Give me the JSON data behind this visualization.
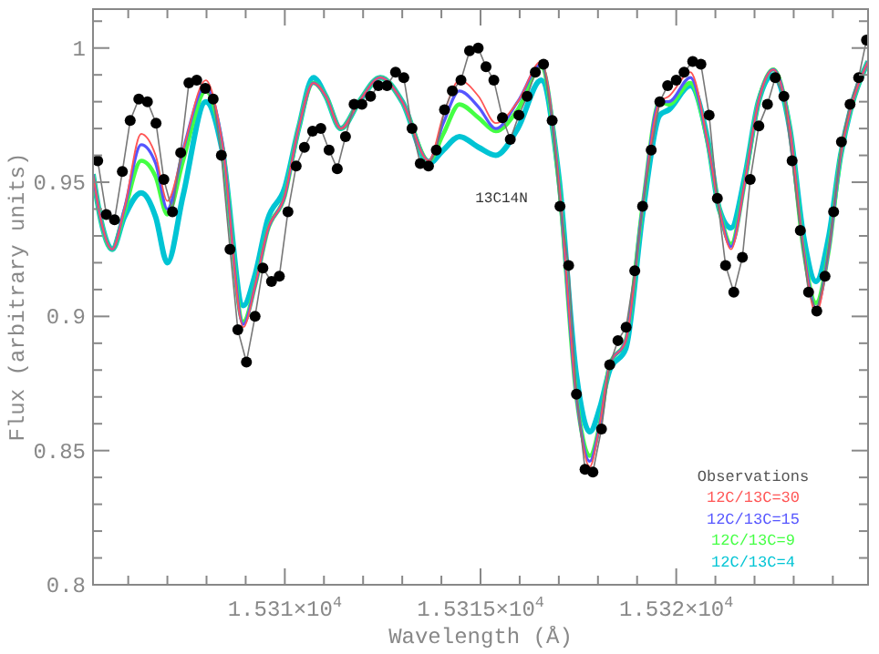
{
  "chart_data": {
    "type": "line",
    "xlabel": "Wavelength (Å)",
    "ylabel": "Flux (arbitrary units)",
    "xlim": [
      15305.1,
      15324.9
    ],
    "ylim": [
      0.8,
      1.0145
    ],
    "xticks": [
      {
        "value": 15306,
        "label": null
      },
      {
        "value": 15307,
        "label": null
      },
      {
        "value": 15308,
        "label": null
      },
      {
        "value": 15309,
        "label": null
      },
      {
        "value": 15310,
        "label": "1.531×10$^{4}$"
      },
      {
        "value": 15311,
        "label": null
      },
      {
        "value": 15312,
        "label": null
      },
      {
        "value": 15313,
        "label": null
      },
      {
        "value": 15314,
        "label": null
      },
      {
        "value": 15315,
        "label": "1.5315×10$^{4}$"
      },
      {
        "value": 15316,
        "label": null
      },
      {
        "value": 15317,
        "label": null
      },
      {
        "value": 15318,
        "label": null
      },
      {
        "value": 15319,
        "label": null
      },
      {
        "value": 15320,
        "label": "1.532×10$^{4}$"
      },
      {
        "value": 15321,
        "label": null
      },
      {
        "value": 15322,
        "label": null
      },
      {
        "value": 15323,
        "label": null
      },
      {
        "value": 15324,
        "label": null
      }
    ],
    "yticks": [
      0.8,
      {
        "value": 0.81,
        "label": null
      },
      {
        "value": 0.82,
        "label": null
      },
      {
        "value": 0.83,
        "label": null
      },
      {
        "value": 0.84,
        "label": null
      },
      0.85,
      {
        "value": 0.86,
        "label": null
      },
      {
        "value": 0.87,
        "label": null
      },
      {
        "value": 0.88,
        "label": null
      },
      {
        "value": 0.89,
        "label": null
      },
      0.9,
      {
        "value": 0.91,
        "label": null
      },
      {
        "value": 0.92,
        "label": null
      },
      {
        "value": 0.93,
        "label": null
      },
      {
        "value": 0.94,
        "label": null
      },
      0.95,
      {
        "value": 0.96,
        "label": null
      },
      {
        "value": 0.97,
        "label": null
      },
      {
        "value": 0.98,
        "label": null
      },
      {
        "value": 0.99,
        "label": null
      },
      1,
      {
        "value": 1.01,
        "label": null
      }
    ],
    "grid": false,
    "legend": "bottom right",
    "line_style": "solid",
    "annotations": [
      "13C14N"
    ],
    "series": [
      {
        "name": "12C/13C=4",
        "color": "#00c4d4",
        "x": [
          15305.1,
          15305.3,
          15305.59,
          15305.9,
          15306.33,
          15306.7,
          15307.0,
          15307.4,
          15307.98,
          15308.4,
          15308.94,
          15309.25,
          15309.56,
          15310.0,
          15310.35,
          15310.73,
          15311.05,
          15311.43,
          15311.9,
          15312.44,
          15313.0,
          15313.68,
          15314.05,
          15314.46,
          15314.95,
          15315.39,
          15315.95,
          15316.55,
          15317.0,
          15317.45,
          15317.79,
          15318.05,
          15318.3,
          15318.71,
          15319.14,
          15319.58,
          15319.81,
          15320.36,
          15320.8,
          15321.1,
          15321.4,
          15321.75,
          15322.1,
          15322.48,
          15322.9,
          15323.25,
          15323.57,
          15323.9,
          15324.2,
          15324.47,
          15324.9
        ],
        "values": [
          0.953,
          0.936,
          0.925,
          0.937,
          0.946,
          0.937,
          0.92,
          0.945,
          0.98,
          0.962,
          0.904,
          0.916,
          0.936,
          0.948,
          0.97,
          0.989,
          0.982,
          0.97,
          0.98,
          0.989,
          0.98,
          0.957,
          0.962,
          0.967,
          0.963,
          0.96,
          0.97,
          0.988,
          0.952,
          0.878,
          0.857,
          0.866,
          0.88,
          0.888,
          0.938,
          0.975,
          0.977,
          0.986,
          0.966,
          0.94,
          0.933,
          0.952,
          0.98,
          0.99,
          0.97,
          0.93,
          0.913,
          0.93,
          0.96,
          0.978,
          0.995
        ]
      },
      {
        "name": "12C/13C=9",
        "color": "#44ff44",
        "x": [
          15305.1,
          15305.3,
          15305.59,
          15305.9,
          15306.33,
          15306.7,
          15307.0,
          15307.4,
          15307.98,
          15308.4,
          15308.94,
          15309.25,
          15309.56,
          15310.0,
          15310.35,
          15310.73,
          15311.05,
          15311.43,
          15311.9,
          15312.44,
          15313.0,
          15313.68,
          15314.05,
          15314.46,
          15314.95,
          15315.39,
          15315.95,
          15316.55,
          15317.0,
          15317.45,
          15317.79,
          15318.05,
          15318.3,
          15318.71,
          15319.14,
          15319.58,
          15319.81,
          15320.36,
          15320.8,
          15321.1,
          15321.4,
          15321.75,
          15322.1,
          15322.48,
          15322.9,
          15323.25,
          15323.57,
          15323.9,
          15324.2,
          15324.47,
          15324.9
        ],
        "values": [
          0.953,
          0.936,
          0.925,
          0.939,
          0.958,
          0.952,
          0.938,
          0.958,
          0.984,
          0.964,
          0.898,
          0.912,
          0.932,
          0.945,
          0.97,
          0.987,
          0.982,
          0.97,
          0.98,
          0.989,
          0.98,
          0.958,
          0.968,
          0.979,
          0.974,
          0.969,
          0.977,
          0.993,
          0.95,
          0.87,
          0.848,
          0.86,
          0.882,
          0.891,
          0.941,
          0.98,
          0.979,
          0.987,
          0.965,
          0.94,
          0.927,
          0.95,
          0.98,
          0.992,
          0.97,
          0.925,
          0.905,
          0.925,
          0.96,
          0.978,
          0.995
        ]
      },
      {
        "name": "12C/13C=15",
        "color": "#5555ff",
        "x": [
          15305.1,
          15305.3,
          15305.59,
          15305.9,
          15306.33,
          15306.7,
          15307.0,
          15307.4,
          15307.98,
          15308.4,
          15308.94,
          15309.25,
          15309.56,
          15310.0,
          15310.35,
          15310.73,
          15311.05,
          15311.43,
          15311.9,
          15312.44,
          15313.0,
          15313.68,
          15314.05,
          15314.46,
          15314.95,
          15315.39,
          15315.95,
          15316.55,
          15317.0,
          15317.45,
          15317.79,
          15318.05,
          15318.3,
          15318.71,
          15319.14,
          15319.58,
          15319.81,
          15320.36,
          15320.8,
          15321.1,
          15321.4,
          15321.75,
          15322.1,
          15322.48,
          15322.9,
          15323.25,
          15323.57,
          15323.9,
          15324.2,
          15324.47,
          15324.9
        ],
        "values": [
          0.953,
          0.936,
          0.925,
          0.94,
          0.964,
          0.957,
          0.94,
          0.962,
          0.986,
          0.965,
          0.897,
          0.912,
          0.932,
          0.945,
          0.97,
          0.987,
          0.982,
          0.97,
          0.98,
          0.989,
          0.98,
          0.958,
          0.972,
          0.984,
          0.978,
          0.97,
          0.98,
          0.994,
          0.95,
          0.87,
          0.846,
          0.86,
          0.882,
          0.891,
          0.941,
          0.98,
          0.98,
          0.989,
          0.965,
          0.94,
          0.926,
          0.95,
          0.98,
          0.992,
          0.97,
          0.925,
          0.903,
          0.925,
          0.96,
          0.978,
          0.995
        ]
      },
      {
        "name": "12C/13C=30",
        "color": "#ff5555",
        "x": [
          15305.1,
          15305.3,
          15305.59,
          15305.9,
          15306.33,
          15306.7,
          15307.0,
          15307.4,
          15307.98,
          15308.4,
          15308.94,
          15309.25,
          15309.56,
          15310.0,
          15310.35,
          15310.73,
          15311.05,
          15311.43,
          15311.9,
          15312.44,
          15313.0,
          15313.68,
          15314.05,
          15314.46,
          15314.95,
          15315.39,
          15315.95,
          15316.55,
          15317.0,
          15317.45,
          15317.79,
          15318.05,
          15318.3,
          15318.71,
          15319.14,
          15319.58,
          15319.81,
          15320.36,
          15320.8,
          15321.1,
          15321.4,
          15321.75,
          15322.1,
          15322.48,
          15322.9,
          15323.25,
          15323.57,
          15323.9,
          15324.2,
          15324.47,
          15324.9
        ],
        "values": [
          0.953,
          0.936,
          0.925,
          0.94,
          0.968,
          0.96,
          0.943,
          0.962,
          0.988,
          0.965,
          0.896,
          0.912,
          0.932,
          0.945,
          0.97,
          0.987,
          0.982,
          0.97,
          0.98,
          0.989,
          0.98,
          0.958,
          0.975,
          0.988,
          0.982,
          0.972,
          0.98,
          0.995,
          0.95,
          0.87,
          0.844,
          0.86,
          0.882,
          0.891,
          0.941,
          0.98,
          0.982,
          0.991,
          0.965,
          0.94,
          0.925,
          0.95,
          0.98,
          0.992,
          0.97,
          0.925,
          0.901,
          0.925,
          0.96,
          0.978,
          0.995
        ]
      },
      {
        "name": "Observations",
        "color": "#000000",
        "marker": "circle",
        "x": [
          15305.22,
          15305.44,
          15305.65,
          15305.85,
          15306.05,
          15306.27,
          15306.49,
          15306.71,
          15306.91,
          15307.13,
          15307.34,
          15307.55,
          15307.75,
          15307.97,
          15308.17,
          15308.38,
          15308.6,
          15308.8,
          15309.02,
          15309.24,
          15309.44,
          15309.66,
          15309.86,
          15310.08,
          15310.29,
          15310.5,
          15310.71,
          15310.92,
          15311.13,
          15311.34,
          15311.55,
          15311.77,
          15311.97,
          15312.19,
          15312.39,
          15312.61,
          15312.83,
          15313.04,
          15313.25,
          15313.46,
          15313.67,
          15313.87,
          15314.08,
          15314.28,
          15314.5,
          15314.72,
          15314.94,
          15315.14,
          15315.34,
          15315.56,
          15315.76,
          15315.98,
          15316.19,
          15316.4,
          15316.61,
          15316.83,
          15317.03,
          15317.25,
          15317.45,
          15317.67,
          15317.87,
          15318.09,
          15318.3,
          15318.51,
          15318.72,
          15318.94,
          15319.14,
          15319.36,
          15319.58,
          15319.78,
          15320.0,
          15320.2,
          15320.42,
          15320.63,
          15320.84,
          15321.05,
          15321.26,
          15321.47,
          15321.69,
          15321.89,
          15322.11,
          15322.33,
          15322.53,
          15322.75,
          15322.96,
          15323.17,
          15323.38,
          15323.59,
          15323.8,
          15324.02,
          15324.22,
          15324.44,
          15324.66,
          15324.86
        ],
        "values": [
          0.958,
          0.938,
          0.936,
          0.954,
          0.973,
          0.981,
          0.98,
          0.972,
          0.951,
          0.939,
          0.961,
          0.987,
          0.988,
          0.985,
          0.981,
          0.96,
          0.925,
          0.895,
          0.883,
          0.9,
          0.918,
          0.913,
          0.915,
          0.939,
          0.956,
          0.963,
          0.969,
          0.97,
          0.962,
          0.955,
          0.967,
          0.979,
          0.979,
          0.982,
          0.986,
          0.986,
          0.991,
          0.989,
          0.97,
          0.957,
          0.956,
          0.962,
          0.977,
          0.984,
          0.988,
          0.999,
          1.0,
          0.993,
          0.988,
          0.974,
          0.966,
          0.975,
          0.982,
          0.991,
          0.994,
          0.973,
          0.941,
          0.919,
          0.871,
          0.843,
          0.842,
          0.858,
          0.882,
          0.891,
          0.896,
          0.917,
          0.941,
          0.962,
          0.98,
          0.986,
          0.988,
          0.991,
          0.995,
          0.994,
          0.975,
          0.944,
          0.919,
          0.909,
          0.922,
          0.951,
          0.971,
          0.979,
          0.989,
          0.982,
          0.958,
          0.932,
          0.909,
          0.902,
          0.915,
          0.939,
          0.965,
          0.979,
          0.989,
          1.003
        ]
      }
    ]
  }
}
